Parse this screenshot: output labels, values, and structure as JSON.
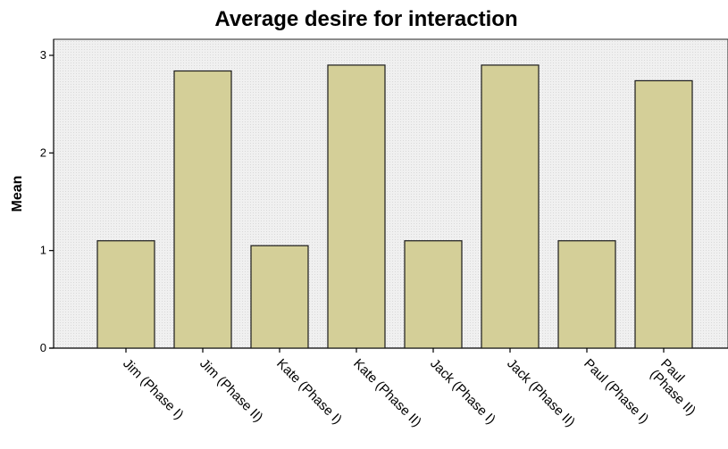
{
  "chart_data": {
    "type": "bar",
    "title": "Average desire for interaction",
    "ylabel": "Mean",
    "xlabel": "",
    "ylim": [
      0,
      3.15
    ],
    "yticks": [
      0,
      1,
      2,
      3
    ],
    "grid": false,
    "legend": "none",
    "bar_color": "#d4cf98",
    "categories": [
      [
        "Jim (Phase I)"
      ],
      [
        "Jim (Phase II)"
      ],
      [
        "Kate (Phase I)"
      ],
      [
        "Kate (Phase II)"
      ],
      [
        "Jack (Phase I)"
      ],
      [
        "Jack (Phase II)"
      ],
      [
        "Paul (Phase I)"
      ],
      [
        "Paul",
        "(Phase II)"
      ]
    ],
    "values": [
      1.1,
      2.84,
      1.05,
      2.9,
      1.1,
      2.9,
      1.1,
      2.74
    ]
  }
}
